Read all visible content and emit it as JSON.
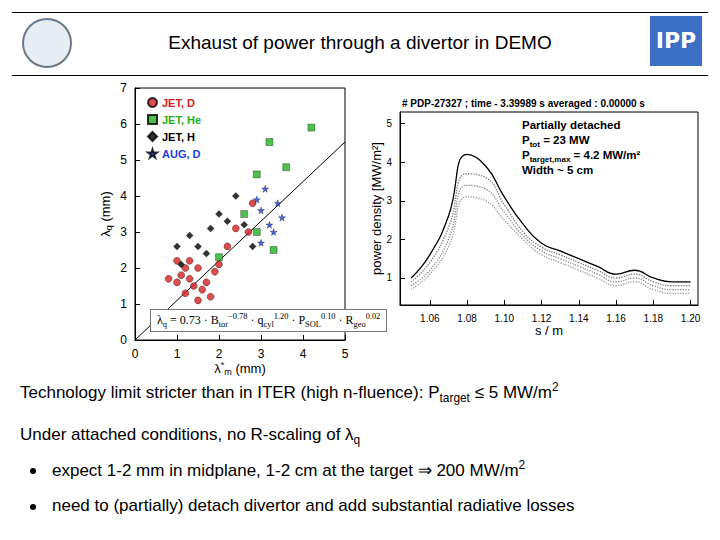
{
  "slide": {
    "title": "Exhaust of power through a divertor in DEMO",
    "logo_text": "IPP",
    "text": [
      [
        {
          "t": "Technology limit stricter than in ITER (high n-fluence): P"
        },
        {
          "sub": "target"
        },
        {
          "t": " ≤ 5 MW/m"
        },
        {
          "sup": "2"
        }
      ],
      [
        {
          "t": "Under attached conditions, no R-scaling of λ"
        },
        {
          "sub": "q"
        }
      ]
    ],
    "bullets": [
      [
        {
          "t": "expect 1-2 mm in midplane, 1-2 cm at the target ⇒ 200 MW/m"
        },
        {
          "sup": "2"
        }
      ],
      [
        {
          "t": "need to (partially) detach divertor and add substantial radiative losses"
        }
      ]
    ]
  },
  "chart_data": [
    {
      "type": "scatter",
      "xlabel": [
        {
          "t": "λ"
        },
        {
          "sup": "*"
        },
        {
          "sub": "m"
        },
        {
          "t": " (mm)"
        }
      ],
      "ylabel": [
        {
          "t": "λ"
        },
        {
          "sub": "q"
        },
        {
          "t": " (mm)"
        }
      ],
      "xlim": [
        0,
        5
      ],
      "ylim": [
        0,
        7
      ],
      "xticks": [
        0,
        1,
        2,
        3,
        4,
        5
      ],
      "yticks": [
        0,
        1,
        2,
        3,
        4,
        5,
        6,
        7
      ],
      "grid": false,
      "legend": "upper left",
      "annotation": [
        {
          "t": "λ"
        },
        {
          "sub": "q"
        },
        {
          "t": " = 0.73 · B"
        },
        {
          "sub": "tor"
        },
        {
          "sup": "−0.78"
        },
        {
          "t": " · q"
        },
        {
          "sub": "cyl"
        },
        {
          "sup": "1.20"
        },
        {
          "t": " · P"
        },
        {
          "sub": "SOL"
        },
        {
          "sup": "0.10"
        },
        {
          "t": " · R"
        },
        {
          "sub": "geo"
        },
        {
          "sup": "0.02"
        }
      ],
      "series": [
        {
          "name": "JET, D",
          "color": "#d62020",
          "marker": "circle",
          "x": [
            1.0,
            1.1,
            1.2,
            1.3,
            1.4,
            1.5,
            1.6,
            1.7,
            1.8,
            1.3,
            1.5,
            1.9,
            2.0,
            2.2,
            2.4,
            2.7,
            1.2,
            0.8,
            1.0,
            2.8
          ],
          "values": [
            1.6,
            1.8,
            1.3,
            1.7,
            1.5,
            2.0,
            1.4,
            1.6,
            1.2,
            2.2,
            1.1,
            1.9,
            2.1,
            2.6,
            3.1,
            3.0,
            2.0,
            1.7,
            2.2,
            3.8
          ]
        },
        {
          "name": "JET, He",
          "color": "#22b022",
          "marker": "square",
          "x": [
            3.2,
            4.2,
            2.9,
            3.6,
            2.6,
            2.0,
            2.9,
            3.3
          ],
          "values": [
            5.5,
            5.9,
            4.6,
            4.8,
            3.5,
            2.3,
            3.0,
            2.5
          ]
        },
        {
          "name": "JET, H",
          "color": "#000000",
          "marker": "diamond",
          "x": [
            1.0,
            1.3,
            1.5,
            1.8,
            2.0,
            2.2,
            2.4,
            2.6,
            1.1,
            2.8,
            1.7
          ],
          "values": [
            2.6,
            2.9,
            2.6,
            3.1,
            3.5,
            3.3,
            4.0,
            3.2,
            2.1,
            2.6,
            2.4
          ]
        },
        {
          "name": "AUG, D",
          "color": "#2040e0",
          "marker": "star",
          "x": [
            2.9,
            3.0,
            3.1,
            3.2,
            3.4,
            3.3,
            3.0,
            3.5
          ],
          "values": [
            3.9,
            3.6,
            4.2,
            3.2,
            3.8,
            3.0,
            2.7,
            3.4
          ]
        },
        {
          "type": "line",
          "color": "#000000",
          "line_style": "solid",
          "x": [
            0,
            5
          ],
          "values": [
            0,
            5.5
          ]
        }
      ]
    },
    {
      "type": "line",
      "xlabel": "s / m",
      "ylabel": "power density [MW/m²]",
      "x": [
        1.05,
        1.06,
        1.07,
        1.08,
        1.09,
        1.1,
        1.11,
        1.12,
        1.13,
        1.14,
        1.15,
        1.16,
        1.17,
        1.18,
        1.19,
        1.2
      ],
      "xlim": [
        1.044,
        1.204
      ],
      "ylim": [
        0.3,
        5.3
      ],
      "xticks": [
        1.06,
        1.08,
        {
          "value": 1.1,
          "label": "1.10"
        },
        1.12,
        1.14,
        1.16,
        1.18,
        {
          "value": 1.2,
          "label": "1.20"
        }
      ],
      "yticks": [
        1,
        2,
        3,
        4,
        5
      ],
      "grid": false,
      "annotation": "# PDP-27327 ; time - 3.39989 s averaged : 0.00000 s",
      "annotation_box": [
        [
          {
            "t": "Partially detached"
          }
        ],
        [
          {
            "t": "P"
          },
          {
            "sub": "tot"
          },
          {
            "t": " = 23 MW"
          }
        ],
        [
          {
            "t": "P"
          },
          {
            "sub": "target,max"
          },
          {
            "t": " = 4.2 MW/m²"
          }
        ],
        [
          {
            "t": "Width ~ 5 cm"
          }
        ]
      ],
      "series": [
        {
          "color": "#000000",
          "line_style": "solid",
          "values": [
            1.0,
            1.6,
            2.6,
            4.2,
            3.9,
            3.1,
            2.4,
            1.9,
            1.7,
            1.5,
            1.3,
            1.1,
            1.2,
            1.0,
            0.9,
            0.9
          ]
        },
        {
          "color": "#777777",
          "line_style": "dotted",
          "values": [
            0.9,
            1.4,
            2.3,
            3.7,
            3.6,
            2.9,
            2.2,
            1.8,
            1.6,
            1.4,
            1.2,
            1.0,
            1.1,
            0.9,
            0.8,
            0.8
          ]
        },
        {
          "color": "#888888",
          "line_style": "dotted",
          "values": [
            0.8,
            1.2,
            2.0,
            3.4,
            3.3,
            2.7,
            2.1,
            1.7,
            1.5,
            1.3,
            1.1,
            0.9,
            1.0,
            0.8,
            0.7,
            0.7
          ]
        },
        {
          "color": "#999999",
          "line_style": "dotted",
          "values": [
            0.7,
            1.1,
            1.8,
            3.1,
            3.0,
            2.5,
            2.0,
            1.6,
            1.4,
            1.2,
            1.0,
            0.8,
            0.9,
            0.7,
            0.6,
            0.6
          ]
        }
      ]
    }
  ]
}
